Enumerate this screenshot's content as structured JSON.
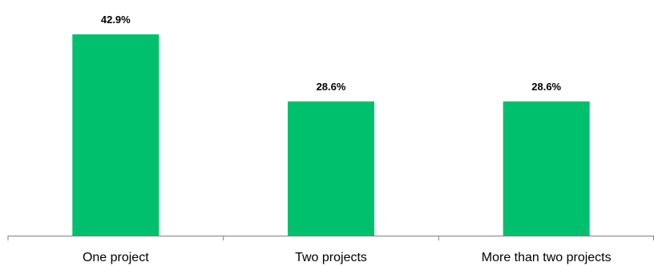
{
  "chart_data": {
    "type": "bar",
    "title": "",
    "xlabel": "",
    "ylabel": "",
    "categories": [
      "One project",
      "Two projects",
      "More than two projects"
    ],
    "values": [
      42.9,
      28.6,
      28.6
    ],
    "data_labels": [
      "42.9%",
      "28.6%",
      "28.6%"
    ],
    "ylim": [
      0,
      42.9
    ],
    "grid": false,
    "legend": "none",
    "bar_color": "#00C06E",
    "axis_color": "#808080"
  }
}
